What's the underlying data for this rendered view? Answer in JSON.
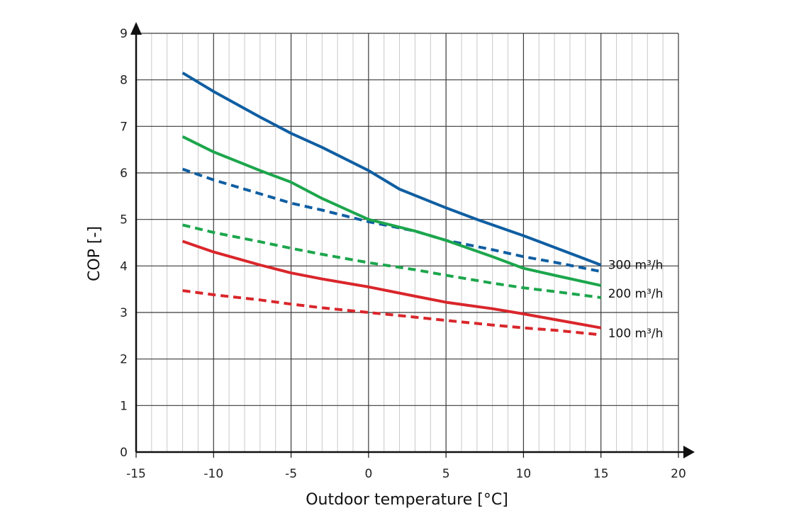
{
  "chart_data": {
    "type": "line",
    "title": "",
    "xlabel": "Outdoor temperature [°C]",
    "ylabel": "COP [-]",
    "xlim": [
      -15,
      20
    ],
    "ylim": [
      0,
      9
    ],
    "xticks": [
      -15,
      -10,
      -5,
      0,
      5,
      10,
      15,
      20
    ],
    "yticks": [
      0,
      1,
      2,
      3,
      4,
      5,
      6,
      7,
      8,
      9
    ],
    "grid": true,
    "series": [
      {
        "name": "300 m³/h",
        "color": "#0f5ea2",
        "style": "solid",
        "x": [
          -12,
          -10,
          -7,
          -5,
          -3,
          0,
          2,
          5,
          7,
          10,
          12,
          15
        ],
        "y": [
          8.15,
          7.75,
          7.2,
          6.85,
          6.55,
          6.05,
          5.65,
          5.25,
          5.0,
          4.65,
          4.4,
          4.02
        ]
      },
      {
        "name": "300 m³/h",
        "color": "#0f5ea2",
        "style": "dashed",
        "x": [
          -12,
          -10,
          -7,
          -5,
          -3,
          0,
          3,
          5,
          8,
          10,
          12,
          15
        ],
        "y": [
          6.08,
          5.85,
          5.55,
          5.35,
          5.2,
          4.95,
          4.75,
          4.55,
          4.35,
          4.2,
          4.08,
          3.88
        ]
      },
      {
        "name": "200 m³/h",
        "color": "#1ca64c",
        "style": "solid",
        "x": [
          -12,
          -10,
          -7,
          -5,
          -3,
          0,
          3,
          5,
          8,
          10,
          12,
          15
        ],
        "y": [
          6.78,
          6.45,
          6.05,
          5.8,
          5.45,
          5.0,
          4.75,
          4.55,
          4.2,
          3.95,
          3.8,
          3.58
        ]
      },
      {
        "name": "200 m³/h",
        "color": "#1ca64c",
        "style": "dashed",
        "x": [
          -12,
          -10,
          -7,
          -5,
          -3,
          0,
          3,
          5,
          8,
          10,
          12,
          15
        ],
        "y": [
          4.88,
          4.72,
          4.52,
          4.38,
          4.25,
          4.07,
          3.92,
          3.8,
          3.63,
          3.53,
          3.45,
          3.32
        ]
      },
      {
        "name": "100 m³/h",
        "color": "#d9262b",
        "style": "solid",
        "x": [
          -12,
          -10,
          -7,
          -5,
          -3,
          0,
          3,
          5,
          8,
          10,
          12,
          15
        ],
        "y": [
          4.53,
          4.3,
          4.02,
          3.85,
          3.72,
          3.55,
          3.35,
          3.22,
          3.08,
          2.97,
          2.85,
          2.67
        ]
      },
      {
        "name": "100 m³/h",
        "color": "#d9262b",
        "style": "dashed",
        "x": [
          -12,
          -10,
          -7,
          -5,
          -3,
          0,
          3,
          5,
          8,
          10,
          12,
          15
        ],
        "y": [
          3.47,
          3.38,
          3.27,
          3.18,
          3.1,
          3.0,
          2.9,
          2.83,
          2.73,
          2.67,
          2.62,
          2.52
        ]
      }
    ],
    "annotations": [
      {
        "text": "300 m³/h",
        "x": 15,
        "y": 4.0
      },
      {
        "text": "200 m³/h",
        "x": 15,
        "y": 3.5
      },
      {
        "text": "100 m³/h",
        "x": 15,
        "y": 2.65
      }
    ]
  }
}
